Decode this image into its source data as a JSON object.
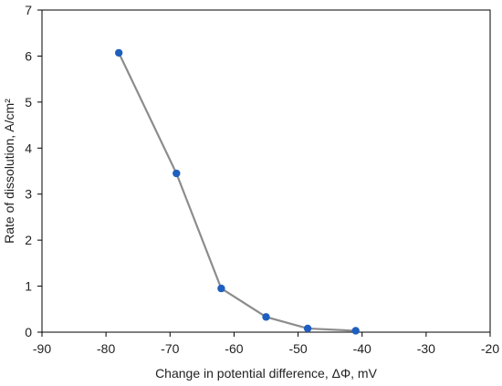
{
  "chart_data": {
    "type": "scatter",
    "title": "",
    "xlabel": "Change in potential difference,  ΔΦ, mV",
    "ylabel": "Rate of dissolution, A/cm²",
    "xlim": [
      -90,
      -20
    ],
    "ylim": [
      0,
      7
    ],
    "xticks": [
      -90,
      -80,
      -70,
      -60,
      -50,
      -40,
      -30,
      -20
    ],
    "yticks": [
      0,
      1,
      2,
      3,
      4,
      5,
      6,
      7
    ],
    "grid": false,
    "legend": "none",
    "series": [
      {
        "x": [
          -78,
          -69,
          -62,
          -55,
          -48.5,
          -41
        ],
        "y": [
          6.07,
          3.45,
          0.95,
          0.33,
          0.08,
          0.03
        ],
        "line_color": "#8c8c8c",
        "marker_color": "#1f5fbf"
      }
    ]
  }
}
